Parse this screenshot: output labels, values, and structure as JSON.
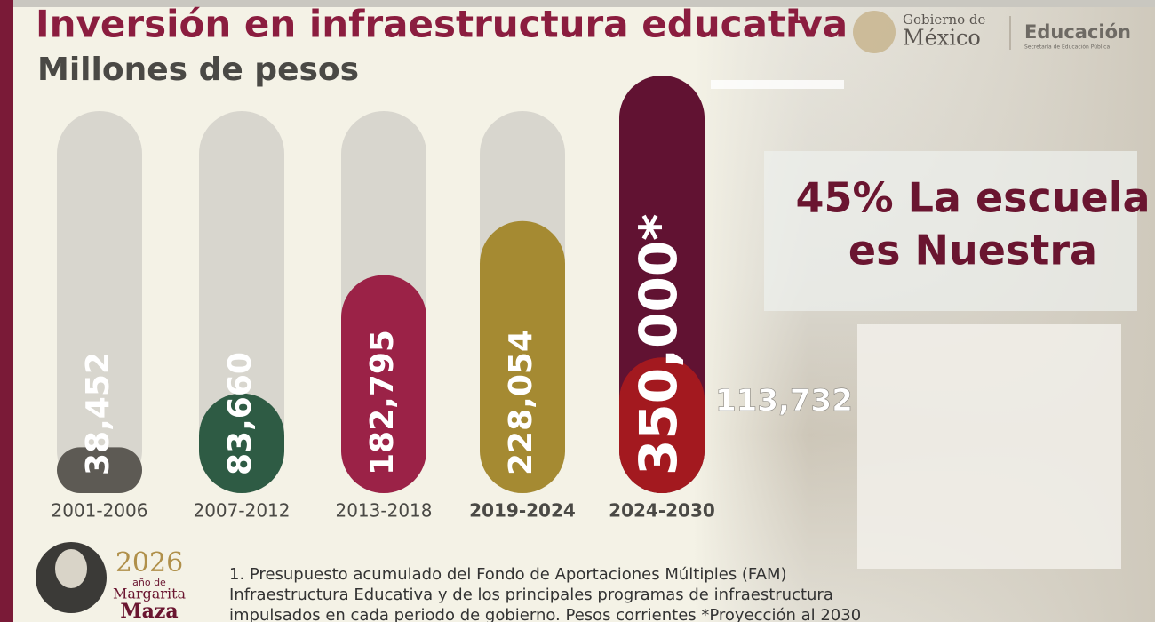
{
  "chart_data": {
    "type": "bar",
    "title": "Inversión en infraestructura educativa",
    "title_note": "1",
    "subtitle": "Millones de pesos",
    "categories": [
      "2001-2006",
      "2007-2012",
      "2013-2018",
      "2019-2024",
      "2024-2030"
    ],
    "values": [
      38452,
      83660,
      182795,
      228054,
      350000
    ],
    "value_labels": [
      "38,452",
      "83,660",
      "182,795",
      "228,054",
      "350,000*"
    ],
    "colors": [
      "#5d5a54",
      "#2e5b44",
      "#9b2247",
      "#a58a32",
      "#611232"
    ],
    "segment": {
      "value": 113732,
      "label": "113,732",
      "color": "#a3191f"
    },
    "callout": [
      "45% La escuela",
      "es Nuestra"
    ],
    "logos": {
      "gov": [
        "Gobierno de",
        "México"
      ],
      "sep": "Educación",
      "sep_sub": "Secretaría de Educación Pública",
      "year": "2026",
      "year_sub": "año de",
      "name": [
        "Margarita",
        "Maza"
      ]
    },
    "footnote": [
      "1. Presupuesto acumulado del Fondo de Aportaciones Múltiples (FAM)",
      "Infraestructura Educativa y de los principales programas de infraestructura",
      "impulsados en cada periodo de gobierno. Pesos corrientes *Proyección al 2030"
    ]
  }
}
